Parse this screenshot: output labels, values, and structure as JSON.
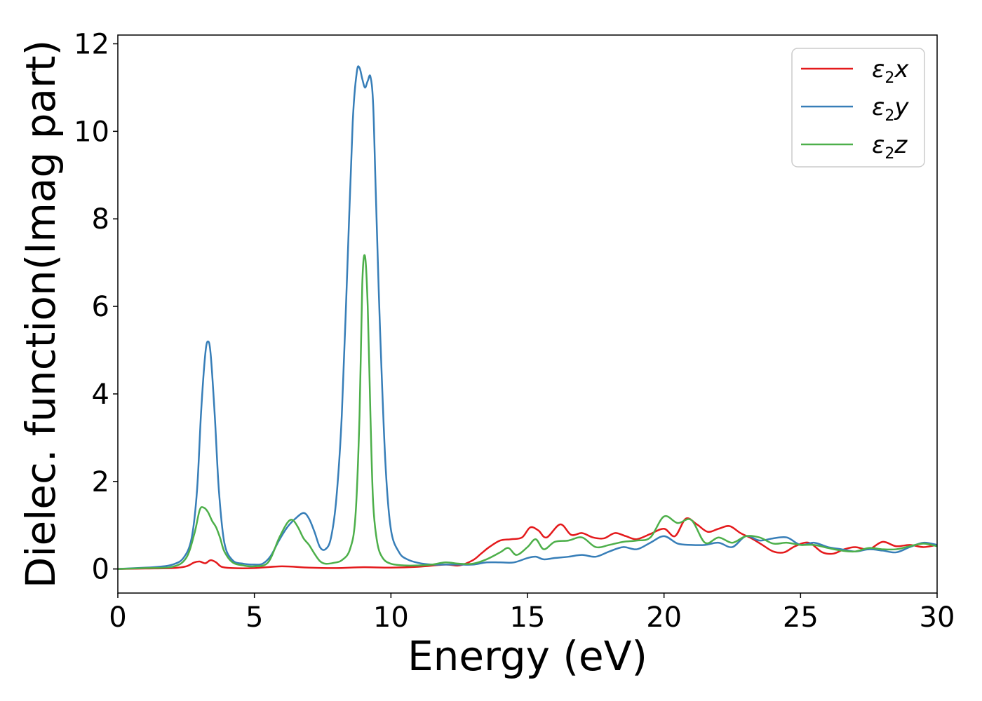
{
  "chart_data": {
    "type": "line",
    "xlabel": "Energy (eV)",
    "ylabel": "Dielec. function(Imag part)",
    "xlim": [
      0,
      30
    ],
    "ylim": [
      -0.55,
      12.2
    ],
    "xticks": [
      "0",
      "5",
      "10",
      "15",
      "20",
      "25",
      "30"
    ],
    "yticks": [
      "0",
      "2",
      "4",
      "6",
      "8",
      "10",
      "12"
    ],
    "grid": false,
    "legend_position": "top-right",
    "series": [
      {
        "name": "ε2x",
        "legend_base": "ε",
        "legend_sub": "2",
        "legend_var": "x",
        "color": "#e41a1c",
        "x": [
          0,
          1,
          2,
          2.5,
          2.8,
          3.0,
          3.2,
          3.4,
          3.6,
          3.8,
          4.2,
          5,
          6,
          7,
          8,
          9,
          10,
          11,
          12,
          12.5,
          13,
          13.3,
          13.6,
          14,
          14.4,
          14.8,
          15.1,
          15.4,
          15.7,
          16.2,
          16.6,
          17,
          17.4,
          17.8,
          18.2,
          18.6,
          19,
          19.5,
          20,
          20.4,
          20.8,
          21.2,
          21.6,
          22,
          22.4,
          22.8,
          23.2,
          23.6,
          24,
          24.4,
          24.8,
          25.3,
          25.8,
          26.2,
          26.6,
          27,
          27.5,
          28,
          28.5,
          29,
          29.5,
          30
        ],
        "y": [
          0,
          0.01,
          0.02,
          0.06,
          0.15,
          0.17,
          0.13,
          0.2,
          0.15,
          0.05,
          0.02,
          0.02,
          0.06,
          0.03,
          0.02,
          0.04,
          0.03,
          0.05,
          0.1,
          0.08,
          0.2,
          0.35,
          0.5,
          0.65,
          0.68,
          0.72,
          0.95,
          0.88,
          0.72,
          1.02,
          0.78,
          0.82,
          0.72,
          0.7,
          0.82,
          0.75,
          0.68,
          0.8,
          0.92,
          0.75,
          1.15,
          1.02,
          0.85,
          0.92,
          0.98,
          0.82,
          0.7,
          0.55,
          0.4,
          0.38,
          0.52,
          0.6,
          0.38,
          0.35,
          0.45,
          0.5,
          0.45,
          0.62,
          0.52,
          0.55,
          0.5,
          0.55
        ]
      },
      {
        "name": "ε2y",
        "legend_base": "ε",
        "legend_sub": "2",
        "legend_var": "y",
        "color": "#377eb8",
        "x": [
          0,
          1,
          1.5,
          2,
          2.4,
          2.7,
          2.9,
          3.05,
          3.2,
          3.3,
          3.4,
          3.55,
          3.7,
          3.9,
          4.2,
          4.6,
          5,
          5.3,
          5.6,
          5.9,
          6.2,
          6.5,
          6.8,
          7,
          7.2,
          7.4,
          7.6,
          7.8,
          8.0,
          8.2,
          8.4,
          8.6,
          8.75,
          8.85,
          8.95,
          9.05,
          9.15,
          9.25,
          9.35,
          9.45,
          9.6,
          9.8,
          10.0,
          10.3,
          10.6,
          11,
          11.5,
          12,
          12.5,
          13,
          13.5,
          14,
          14.5,
          15,
          15.3,
          15.6,
          16,
          16.5,
          17,
          17.5,
          18,
          18.5,
          19,
          19.5,
          20,
          20.5,
          21,
          21.5,
          22,
          22.5,
          23,
          23.5,
          24,
          24.5,
          25,
          25.5,
          26,
          26.5,
          27,
          27.5,
          28,
          28.5,
          29,
          29.5,
          30
        ],
        "y": [
          0,
          0.03,
          0.05,
          0.1,
          0.25,
          0.7,
          1.8,
          3.6,
          4.9,
          5.2,
          4.9,
          3.5,
          1.8,
          0.6,
          0.2,
          0.12,
          0.1,
          0.12,
          0.3,
          0.65,
          0.95,
          1.15,
          1.28,
          1.15,
          0.85,
          0.5,
          0.45,
          0.7,
          1.6,
          3.5,
          6.8,
          10.2,
          11.35,
          11.45,
          11.2,
          11.0,
          11.15,
          11.25,
          10.6,
          8.5,
          5.5,
          2.4,
          0.9,
          0.38,
          0.22,
          0.14,
          0.1,
          0.1,
          0.1,
          0.1,
          0.15,
          0.15,
          0.15,
          0.25,
          0.28,
          0.22,
          0.25,
          0.28,
          0.32,
          0.28,
          0.4,
          0.5,
          0.45,
          0.6,
          0.75,
          0.58,
          0.55,
          0.55,
          0.6,
          0.5,
          0.75,
          0.65,
          0.7,
          0.72,
          0.55,
          0.6,
          0.5,
          0.45,
          0.4,
          0.45,
          0.42,
          0.38,
          0.5,
          0.6,
          0.55
        ]
      },
      {
        "name": "ε2z",
        "legend_base": "ε",
        "legend_sub": "2",
        "legend_var": "z",
        "color": "#4daf4a",
        "x": [
          0,
          1,
          2,
          2.5,
          2.8,
          3.0,
          3.15,
          3.3,
          3.45,
          3.6,
          3.75,
          3.9,
          4.2,
          4.6,
          5,
          5.5,
          5.9,
          6.2,
          6.4,
          6.6,
          6.8,
          7.0,
          7.2,
          7.4,
          7.6,
          7.9,
          8.2,
          8.5,
          8.7,
          8.85,
          8.95,
          9.05,
          9.15,
          9.25,
          9.35,
          9.5,
          9.7,
          10.0,
          10.5,
          11,
          11.5,
          12,
          12.5,
          13,
          13.5,
          14,
          14.3,
          14.6,
          15,
          15.3,
          15.6,
          16,
          16.5,
          17,
          17.5,
          18,
          18.5,
          19,
          19.5,
          20,
          20.5,
          21,
          21.5,
          22,
          22.5,
          23,
          23.5,
          24,
          24.5,
          25,
          25.5,
          26,
          26.5,
          27,
          27.5,
          28,
          28.5,
          29,
          29.5,
          30
        ],
        "y": [
          0,
          0.02,
          0.05,
          0.25,
          0.8,
          1.35,
          1.4,
          1.3,
          1.1,
          0.95,
          0.7,
          0.4,
          0.15,
          0.08,
          0.06,
          0.15,
          0.7,
          1.05,
          1.12,
          0.95,
          0.7,
          0.55,
          0.35,
          0.18,
          0.12,
          0.14,
          0.2,
          0.45,
          1.2,
          3.5,
          6.5,
          7.15,
          6.0,
          3.5,
          1.5,
          0.6,
          0.25,
          0.12,
          0.08,
          0.08,
          0.1,
          0.15,
          0.12,
          0.12,
          0.22,
          0.38,
          0.48,
          0.32,
          0.5,
          0.68,
          0.45,
          0.62,
          0.65,
          0.72,
          0.5,
          0.55,
          0.62,
          0.65,
          0.72,
          1.2,
          1.05,
          1.12,
          0.6,
          0.72,
          0.6,
          0.75,
          0.72,
          0.58,
          0.6,
          0.55,
          0.55,
          0.48,
          0.42,
          0.4,
          0.48,
          0.45,
          0.45,
          0.52,
          0.58,
          0.52
        ]
      }
    ]
  }
}
